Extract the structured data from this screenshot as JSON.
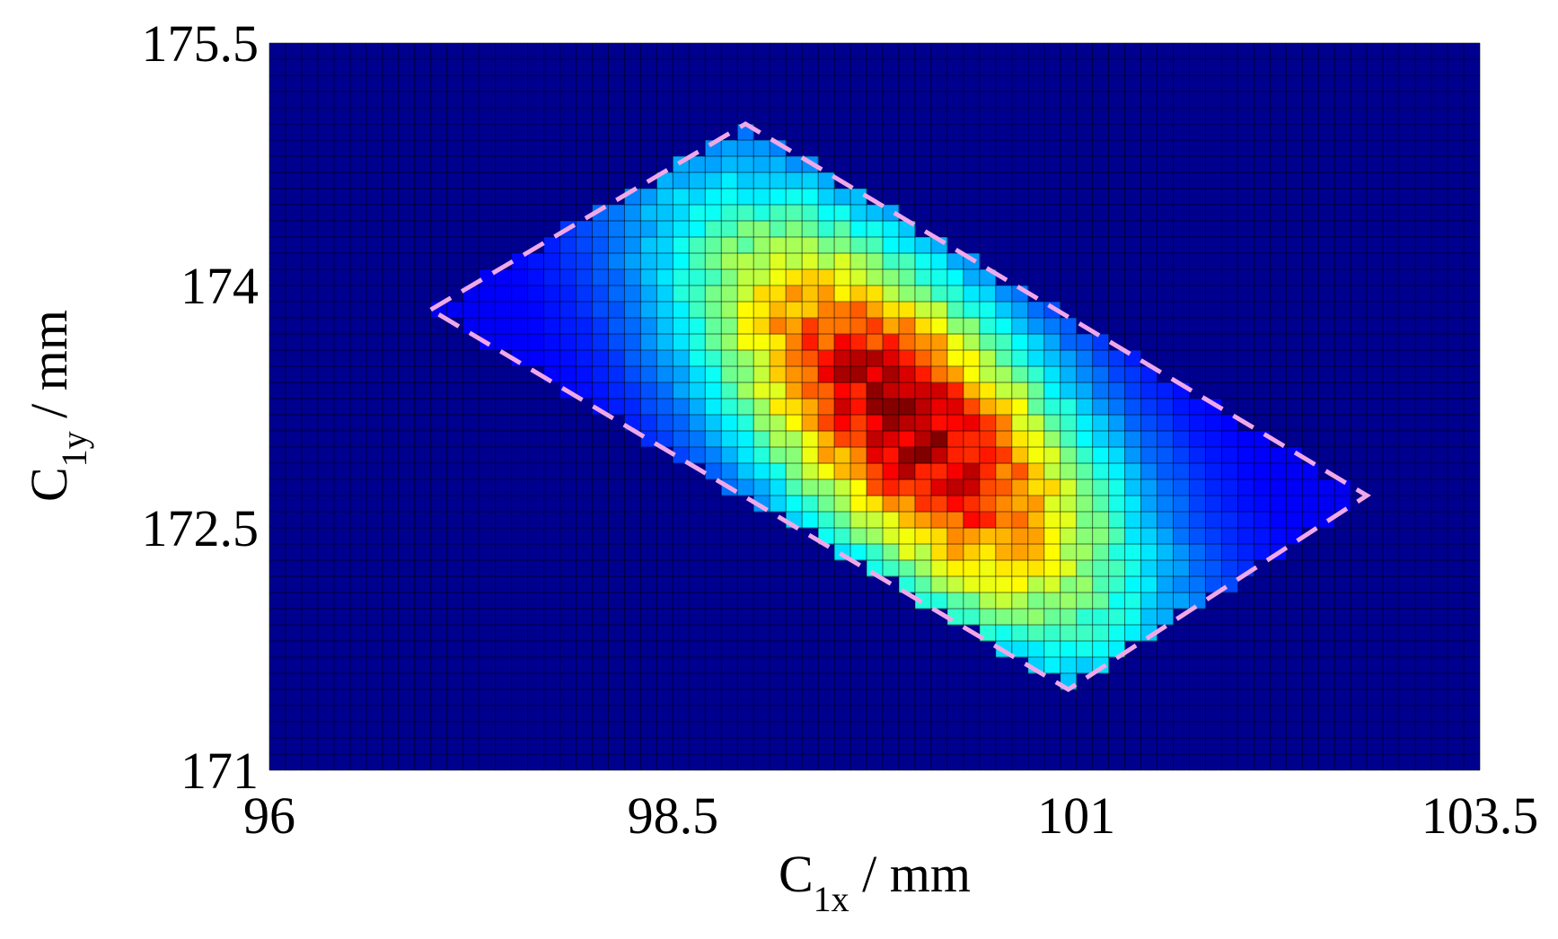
{
  "chart_data": {
    "type": "heatmap",
    "title": "",
    "xlabel": {
      "symbol": "C",
      "subscript": "1x",
      "unit": " / mm"
    },
    "ylabel": {
      "symbol": "C",
      "subscript": "1y",
      "unit": " / mm"
    },
    "xlim": [
      96,
      103.5
    ],
    "ylim": [
      171,
      175.5
    ],
    "x_ticks": [
      96,
      98.5,
      101,
      103.5
    ],
    "y_ticks": [
      171,
      172.5,
      174,
      175.5
    ],
    "x_tick_labels": [
      "96",
      "98.5",
      "101",
      "103.5"
    ],
    "y_tick_labels": [
      "171",
      "172.5",
      "174",
      "175.5"
    ],
    "bins": {
      "nx": 75,
      "ny": 45
    },
    "colormap": "jet",
    "background_color": "#00008f",
    "density_peak": {
      "x": 99.95,
      "y": 173.15
    },
    "grid": true,
    "region_boundary": {
      "style": "dashed",
      "color": "#f0a8e8",
      "vertices": [
        {
          "x": 97.0,
          "y": 173.85
        },
        {
          "x": 98.95,
          "y": 175.0
        },
        {
          "x": 102.8,
          "y": 172.7
        },
        {
          "x": 100.95,
          "y": 171.5
        }
      ]
    }
  }
}
